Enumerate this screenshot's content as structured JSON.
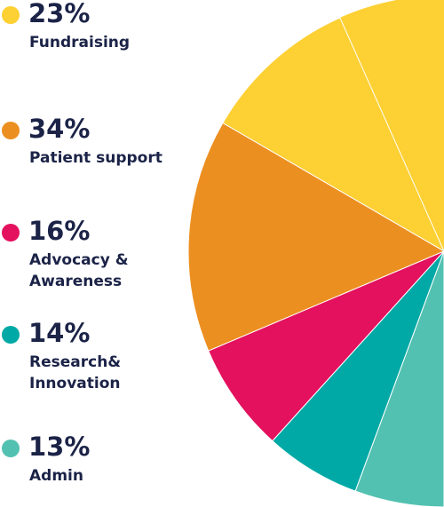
{
  "chart_data": {
    "type": "pie",
    "slices": [
      {
        "percent": "23%",
        "label": "Fundraising",
        "value": 23,
        "color": "#fdd033"
      },
      {
        "percent": "34%",
        "label": "Patient support",
        "value": 34,
        "color": "#ec8f21"
      },
      {
        "percent": "16%",
        "label": "Advocacy &\nAwareness",
        "value": 16,
        "color": "#e3115e"
      },
      {
        "percent": "14%",
        "label": "Research&\nInnovation",
        "value": 14,
        "color": "#00a9a6"
      },
      {
        "percent": "13%",
        "label": "Admin",
        "value": 13,
        "color": "#53c1b1"
      }
    ]
  }
}
